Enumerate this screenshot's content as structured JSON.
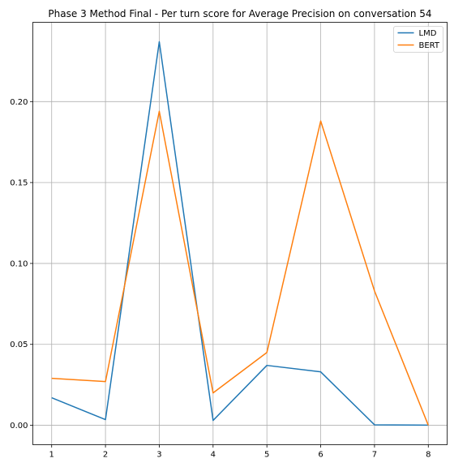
{
  "chart_data": {
    "type": "line",
    "title": "Phase 3 Method Final - Per turn score for Average Precision on conversation 54",
    "xlabel": "",
    "ylabel": "",
    "x": [
      1,
      2,
      3,
      4,
      5,
      6,
      7,
      8
    ],
    "xticks": [
      "1",
      "2",
      "3",
      "4",
      "5",
      "6",
      "7",
      "8"
    ],
    "yticks": [
      "0.00",
      "0.05",
      "0.10",
      "0.15",
      "0.20"
    ],
    "ytick_values": [
      0.0,
      0.05,
      0.1,
      0.15,
      0.2
    ],
    "xlim": [
      0.65,
      8.35
    ],
    "ylim": [
      -0.012,
      0.249
    ],
    "grid": true,
    "legend_position": "top-right",
    "series": [
      {
        "name": "LMD",
        "color": "#1f77b4",
        "values": [
          0.017,
          0.0035,
          0.237,
          0.003,
          0.037,
          0.033,
          0.0003,
          0.0001
        ]
      },
      {
        "name": "BERT",
        "color": "#ff7f0e",
        "values": [
          0.029,
          0.027,
          0.194,
          0.02,
          0.045,
          0.188,
          0.083,
          0.0
        ]
      }
    ]
  }
}
